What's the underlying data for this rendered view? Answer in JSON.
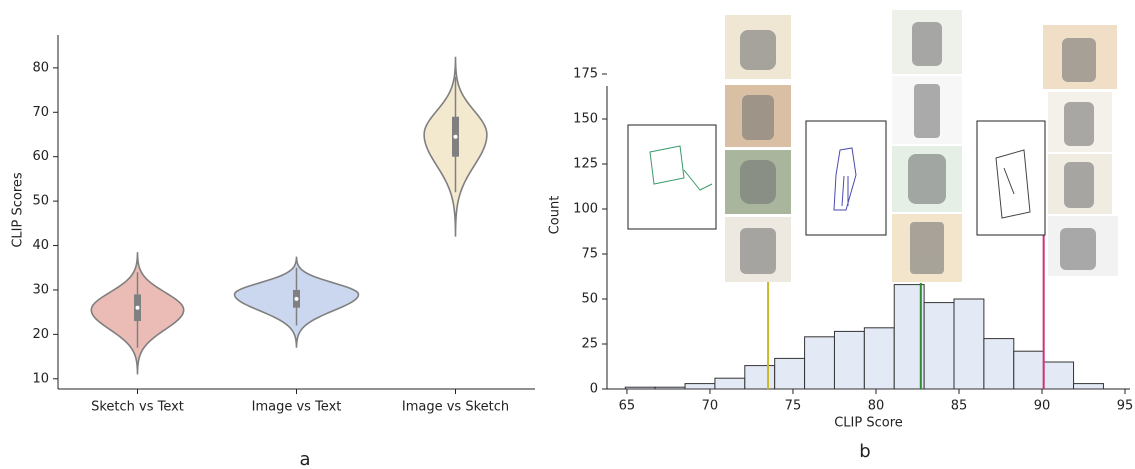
{
  "chart_data": [
    {
      "type": "violin",
      "panel_label": "a",
      "y_label": "CLIP Scores",
      "categories": [
        "Sketch vs Text",
        "Image vs Text",
        "Image vs Sketch"
      ],
      "colors": [
        "#ebbcb6",
        "#cbd7ee",
        "#f3e9cf"
      ],
      "stats": [
        {
          "min": 11,
          "whisker_low": 17,
          "q1": 23,
          "median": 26,
          "q3": 29,
          "whisker_high": 34,
          "max": 38.5,
          "mode": 25.5
        },
        {
          "min": 17,
          "whisker_low": 22,
          "q1": 26,
          "median": 28,
          "q3": 30,
          "whisker_high": 35,
          "max": 37.5,
          "mode": 29
        },
        {
          "min": 42,
          "whisker_low": 52,
          "q1": 60,
          "median": 64.5,
          "q3": 69,
          "whisker_high": 78,
          "max": 82.5,
          "mode": 65
        }
      ],
      "ylim": [
        7.7,
        87.4
      ],
      "yticks": [
        10,
        20,
        30,
        40,
        50,
        60,
        70,
        80
      ]
    },
    {
      "type": "histogram",
      "panel_label": "b",
      "x_label": "CLIP Score",
      "y_label": "Count",
      "bins": [
        64.9,
        66.7,
        68.5,
        70.3,
        72.1,
        73.9,
        75.7,
        77.5,
        79.3,
        81.1,
        82.9,
        84.7,
        86.5,
        88.3,
        90.1,
        91.9,
        93.7
      ],
      "counts": [
        1,
        1,
        3,
        6,
        13,
        17,
        29,
        32,
        34,
        58,
        48,
        50,
        28,
        21,
        15,
        3
      ],
      "color": "#e3eaf6",
      "edge_color": "#333333",
      "markers": [
        {
          "value": 73.5,
          "color": "#c9b82c"
        },
        {
          "value": 82.7,
          "color": "#2e8b2e"
        },
        {
          "value": 90.1,
          "color": "#d0307a"
        }
      ],
      "xlim": [
        63.8,
        95.3
      ],
      "xticks": [
        65,
        70,
        75,
        80,
        85,
        90,
        95
      ],
      "ylim": [
        0,
        175
      ],
      "yticks": [
        0,
        25,
        50,
        75,
        100,
        125,
        150,
        175
      ]
    }
  ]
}
